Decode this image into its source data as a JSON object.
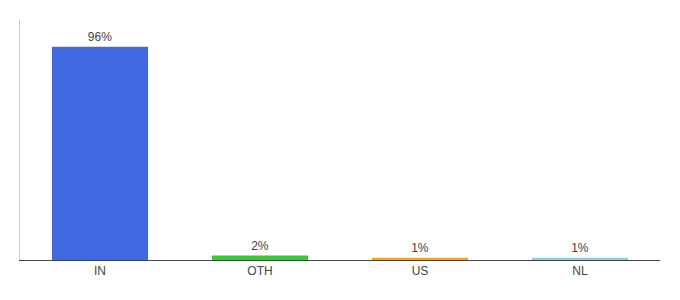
{
  "chart_data": {
    "type": "bar",
    "categories": [
      "IN",
      "OTH",
      "US",
      "NL"
    ],
    "values": [
      96,
      2,
      1,
      1
    ],
    "value_labels": [
      "96%",
      "2%",
      "1%",
      "1%"
    ],
    "colors": [
      "#4169e1",
      "#32cd32",
      "#ffa500",
      "#87ceeb"
    ],
    "ylim": [
      0,
      108
    ],
    "grid": false,
    "data_labels": true,
    "tick_labels": "x"
  }
}
